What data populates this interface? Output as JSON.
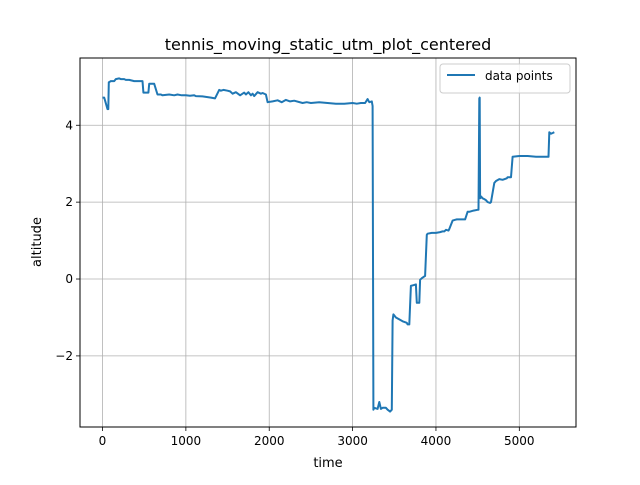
{
  "chart_data": {
    "type": "line",
    "title": "tennis_moving_static_utm_plot_centered",
    "xlabel": "time",
    "ylabel": "altitude",
    "xlim": [
      -270,
      5680
    ],
    "ylim": [
      -3.85,
      5.75
    ],
    "xticks": [
      0,
      1000,
      2000,
      3000,
      4000,
      5000
    ],
    "xtick_labels": [
      "0",
      "1000",
      "2000",
      "3000",
      "4000",
      "5000"
    ],
    "yticks": [
      -2,
      0,
      2,
      4
    ],
    "ytick_labels": [
      "−2",
      "0",
      "2",
      "4"
    ],
    "grid": true,
    "legend": {
      "placement": "top-right",
      "entries": [
        "data points"
      ]
    },
    "colors": {
      "series": "#1f77b4",
      "grid": "#b0b0b0",
      "axes": "#000000"
    },
    "series": [
      {
        "name": "data points",
        "x": [
          0,
          20,
          30,
          60,
          70,
          75,
          80,
          100,
          140,
          160,
          200,
          220,
          260,
          280,
          320,
          380,
          400,
          480,
          490,
          500,
          550,
          560,
          620,
          660,
          700,
          720,
          800,
          860,
          900,
          950,
          1000,
          1050,
          1100,
          1120,
          1200,
          1300,
          1350,
          1400,
          1420,
          1450,
          1500,
          1530,
          1560,
          1600,
          1650,
          1700,
          1720,
          1750,
          1780,
          1800,
          1820,
          1860,
          1900,
          1920,
          1960,
          1980,
          2040,
          2100,
          2150,
          2200,
          2250,
          2300,
          2400,
          2450,
          2500,
          2600,
          2700,
          2800,
          2900,
          3000,
          3050,
          3100,
          3150,
          3180,
          3200,
          3230,
          3240,
          3250,
          3260,
          3300,
          3320,
          3340,
          3360,
          3400,
          3420,
          3450,
          3470,
          3480,
          3490,
          3520,
          3560,
          3600,
          3650,
          3660,
          3680,
          3700,
          3730,
          3760,
          3770,
          3780,
          3800,
          3810,
          3830,
          3850,
          3870,
          3890,
          3900,
          3950,
          4000,
          4050,
          4080,
          4100,
          4120,
          4150,
          4160,
          4200,
          4230,
          4250,
          4300,
          4350,
          4380,
          4400,
          4450,
          4500,
          4510,
          4520,
          4525,
          4530,
          4540,
          4560,
          4580,
          4600,
          4620,
          4650,
          4660,
          4700,
          4720,
          4760,
          4800,
          4850,
          4860,
          4900,
          4920,
          5000,
          5100,
          5200,
          5300,
          5350,
          5360,
          5380,
          5400,
          5420
        ],
        "y": [
          4.72,
          4.72,
          4.65,
          4.42,
          4.42,
          5.12,
          5.12,
          5.15,
          5.15,
          5.2,
          5.22,
          5.2,
          5.2,
          5.18,
          5.18,
          5.15,
          5.15,
          5.15,
          4.85,
          4.85,
          4.85,
          5.08,
          5.08,
          4.8,
          4.8,
          4.78,
          4.8,
          4.78,
          4.8,
          4.78,
          4.78,
          4.77,
          4.78,
          4.76,
          4.75,
          4.72,
          4.7,
          4.92,
          4.9,
          4.92,
          4.9,
          4.88,
          4.82,
          4.86,
          4.78,
          4.85,
          4.8,
          4.86,
          4.78,
          4.82,
          4.76,
          4.86,
          4.82,
          4.84,
          4.8,
          4.6,
          4.62,
          4.65,
          4.6,
          4.66,
          4.62,
          4.64,
          4.58,
          4.6,
          4.58,
          4.6,
          4.58,
          4.56,
          4.56,
          4.58,
          4.56,
          4.58,
          4.58,
          4.68,
          4.6,
          4.62,
          4.5,
          -3.4,
          -3.35,
          -3.38,
          -3.2,
          -3.38,
          -3.35,
          -3.35,
          -3.4,
          -3.45,
          -3.4,
          -1.08,
          -0.92,
          -1.0,
          -1.05,
          -1.1,
          -1.14,
          -1.18,
          -1.18,
          -0.18,
          -0.16,
          -0.14,
          -0.62,
          -0.62,
          -0.62,
          -0.02,
          0.02,
          0.05,
          0.08,
          1.15,
          1.18,
          1.2,
          1.2,
          1.22,
          1.24,
          1.24,
          1.28,
          1.26,
          1.3,
          1.52,
          1.54,
          1.55,
          1.55,
          1.55,
          1.75,
          1.75,
          1.78,
          1.8,
          1.8,
          4.7,
          4.72,
          2.1,
          2.15,
          2.1,
          2.08,
          2.05,
          2.0,
          1.98,
          2.0,
          2.5,
          2.55,
          2.6,
          2.58,
          2.62,
          2.65,
          2.65,
          3.18,
          3.2,
          3.2,
          3.18,
          3.18,
          3.18,
          3.82,
          3.78,
          3.8,
          3.82
        ]
      }
    ]
  }
}
